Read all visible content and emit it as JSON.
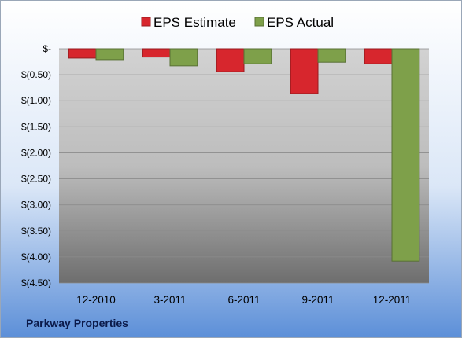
{
  "footer": {
    "company": "Parkway Properties"
  },
  "chart_data": {
    "type": "bar",
    "categories": [
      "12-2010",
      "3-2011",
      "6-2011",
      "9-2011",
      "12-2011"
    ],
    "series": [
      {
        "name": "EPS Estimate",
        "values": [
          -0.18,
          -0.16,
          -0.44,
          -0.86,
          -0.29
        ],
        "color": "#d7262d"
      },
      {
        "name": "EPS Actual",
        "values": [
          -0.21,
          -0.33,
          -0.29,
          -0.26,
          -4.08
        ],
        "color": "#7ea04a"
      }
    ],
    "ylim": [
      -4.5,
      0
    ],
    "yticks": [
      {
        "value": 0,
        "label": "$-"
      },
      {
        "value": -0.5,
        "label": "$(0.50)"
      },
      {
        "value": -1.0,
        "label": "$(1.00)"
      },
      {
        "value": -1.5,
        "label": "$(1.50)"
      },
      {
        "value": -2.0,
        "label": "$(2.00)"
      },
      {
        "value": -2.5,
        "label": "$(2.50)"
      },
      {
        "value": -3.0,
        "label": "$(3.00)"
      },
      {
        "value": -3.5,
        "label": "$(3.50)"
      },
      {
        "value": -4.0,
        "label": "$(4.00)"
      },
      {
        "value": -4.5,
        "label": "$(4.50)"
      }
    ],
    "grid": true,
    "legend_position": "top"
  }
}
